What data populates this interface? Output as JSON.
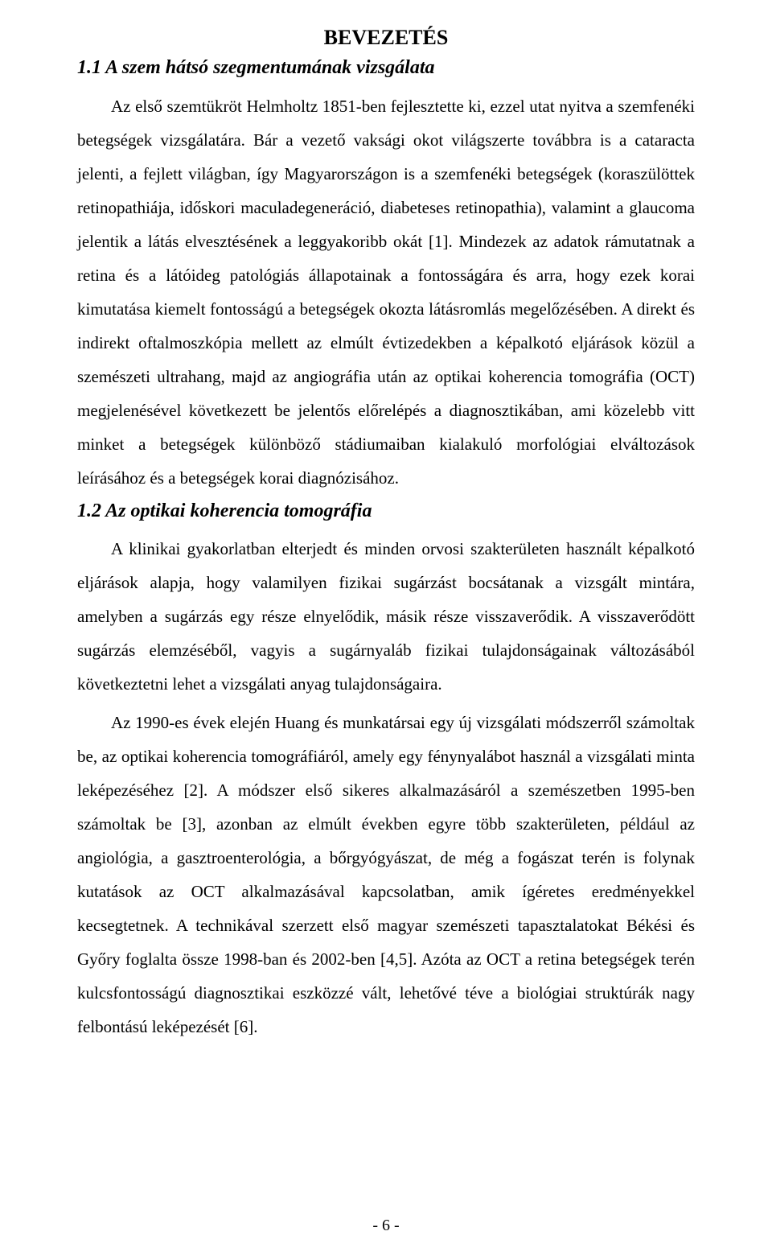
{
  "title": "BEVEZETÉS",
  "section1": {
    "heading": "1.1  A szem hátsó szegmentumának vizsgálata",
    "p1": "Az első szemtükröt Helmholtz 1851-ben fejlesztette ki, ezzel utat nyitva a szemfenéki betegségek vizsgálatára. Bár a vezető vaksági okot világszerte továbbra is a cataracta jelenti, a fejlett világban, így Magyarországon is a szemfenéki betegségek (koraszülöttek retinopathiája, időskori maculadegeneráció, diabeteses retinopathia), valamint a glaucoma jelentik a látás elvesztésének a leggyakoribb okát [1]. Mindezek az adatok rámutatnak a retina és a látóideg patológiás állapotainak a fontosságára és arra, hogy ezek korai kimutatása kiemelt fontosságú a betegségek okozta látásromlás megelőzésében. A direkt és indirekt oftalmoszkópia mellett az elmúlt évtizedekben a képalkotó eljárások közül a szemészeti ultrahang, majd az angiográfia után az optikai koherencia tomográfia (OCT) megjelenésével következett be jelentős előrelépés a diagnosztikában, ami közelebb vitt minket a betegségek különböző stádiumaiban kialakuló morfológiai elváltozások leírásához és a betegségek korai diagnózisához."
  },
  "section2": {
    "heading": "1.2  Az optikai koherencia tomográfia",
    "p1": "A klinikai gyakorlatban elterjedt és minden orvosi szakterületen használt képalkotó eljárások alapja, hogy valamilyen fizikai sugárzást bocsátanak a vizsgált mintára, amelyben a sugárzás egy része elnyelődik, másik része visszaverődik. A visszaverődött sugárzás elemzéséből, vagyis a sugárnyaláb fizikai tulajdonságainak változásából következtetni lehet a vizsgálati anyag tulajdonságaira.",
    "p2": "Az 1990-es évek elején Huang és munkatársai egy új vizsgálati módszerről számoltak be, az optikai koherencia tomográfiáról, amely egy fénynyalábot használ a vizsgálati minta leképezéséhez [2]. A módszer első sikeres alkalmazásáról a szemészetben 1995-ben számoltak be [3], azonban az elmúlt években egyre több szakterületen, például az angiológia, a gasztroenterológia, a bőrgyógyászat, de még a fogászat terén is folynak kutatások az OCT alkalmazásával kapcsolatban, amik ígéretes eredményekkel kecsegtetnek. A technikával szerzett első magyar szemészeti tapasztalatokat Békési és Győry foglalta össze 1998-ban és 2002-ben [4,5]. Azóta az OCT a retina betegségek terén kulcsfontosságú diagnosztikai eszközzé vált, lehetővé téve a biológiai struktúrák nagy felbontású leképezését [6]."
  },
  "page_number": "- 6 -"
}
